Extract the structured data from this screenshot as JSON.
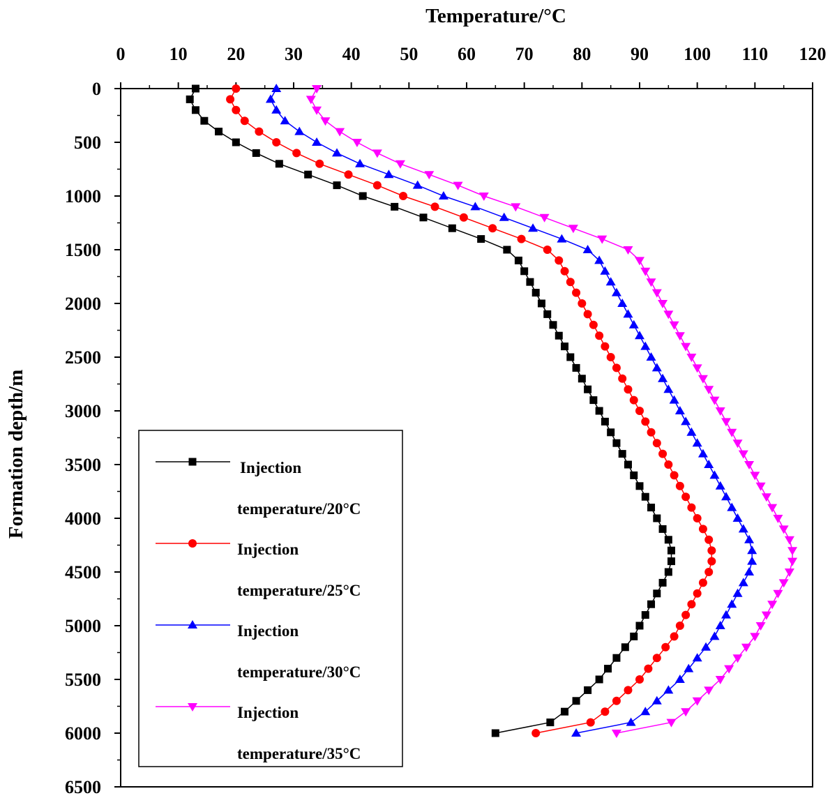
{
  "chart_data": {
    "type": "line",
    "title": "",
    "xlabel": "Temperature/°C",
    "ylabel": "Formation depth/m",
    "xlim": [
      0,
      120
    ],
    "ylim": [
      6500,
      0
    ],
    "x_axis_position": "top",
    "y_inverted": true,
    "x_ticks": [
      "0",
      "10",
      "20",
      "30",
      "40",
      "50",
      "60",
      "70",
      "80",
      "90",
      "100",
      "110",
      "120"
    ],
    "y_ticks": [
      "0",
      "500",
      "1000",
      "1500",
      "2000",
      "2500",
      "3000",
      "3500",
      "4000",
      "4500",
      "5000",
      "5500",
      "6000",
      "6500"
    ],
    "grid": false,
    "legend_position": "bottom-left",
    "depth": [
      0,
      100,
      200,
      300,
      400,
      500,
      600,
      700,
      800,
      900,
      1000,
      1100,
      1200,
      1300,
      1400,
      1500,
      1600,
      1700,
      1800,
      1900,
      2000,
      2100,
      2200,
      2300,
      2400,
      2500,
      2600,
      2700,
      2800,
      2900,
      3000,
      3100,
      3200,
      3300,
      3400,
      3500,
      3600,
      3700,
      3800,
      3900,
      4000,
      4100,
      4200,
      4300,
      4400,
      4500,
      4600,
      4700,
      4800,
      4900,
      5000,
      5100,
      5200,
      5300,
      5400,
      5500,
      5600,
      5700,
      5800,
      5900,
      6000
    ],
    "series": [
      {
        "name_line1": "Injection",
        "name_line2": "temperature/20°C",
        "color": "#000000",
        "marker": "square",
        "values": [
          13,
          12,
          13,
          14.5,
          17,
          20,
          23.5,
          27.5,
          32.5,
          37.5,
          42,
          47.5,
          52.5,
          57.5,
          62.5,
          67,
          69,
          70,
          71,
          72,
          73,
          74,
          75,
          76,
          77,
          78,
          79,
          80,
          81,
          82,
          83,
          84,
          85,
          86,
          87,
          88,
          89,
          90,
          91,
          92,
          93,
          94,
          95,
          95.5,
          95.5,
          95,
          94,
          93,
          92,
          91,
          90,
          89,
          87.5,
          86,
          84.5,
          83,
          81,
          79,
          77,
          74.5,
          65
        ]
      },
      {
        "name_line1": "Injection",
        "name_line2": "temperature/25°C",
        "color": "#ff0000",
        "marker": "circle",
        "values": [
          20,
          19,
          20,
          21.5,
          24,
          27,
          30.5,
          34.5,
          39.5,
          44.5,
          49,
          54.5,
          59.5,
          64.5,
          69.5,
          74,
          76,
          77,
          78,
          79,
          80,
          81,
          82,
          83,
          84,
          85,
          86,
          87,
          88,
          89,
          90,
          91,
          92,
          93,
          94,
          95,
          96,
          97,
          98,
          99,
          100,
          101,
          102,
          102.5,
          102.5,
          102,
          101,
          100,
          99,
          98,
          97,
          96,
          94.5,
          93,
          91.5,
          90,
          88,
          86,
          84,
          81.5,
          72
        ]
      },
      {
        "name_line1": "Injection",
        "name_line2": "temperature/30°C",
        "color": "#0000ff",
        "marker": "triangle-up",
        "values": [
          27,
          26,
          27,
          28.5,
          31,
          34,
          37.5,
          41.5,
          46.5,
          51.5,
          56,
          61.5,
          66.5,
          71.5,
          76.5,
          81,
          83,
          84,
          85,
          86,
          87,
          88,
          89,
          90,
          91,
          92,
          93,
          94,
          95,
          96,
          97,
          98,
          99,
          100,
          101,
          102,
          103,
          104,
          105,
          106,
          107,
          108,
          109,
          109.5,
          109.5,
          109,
          108,
          107,
          106,
          105,
          104,
          103,
          101.5,
          100,
          98.5,
          97,
          95,
          93,
          91,
          88.5,
          79
        ]
      },
      {
        "name_line1": "Injection",
        "name_line2": "temperature/35°C",
        "color": "#ff00ff",
        "marker": "triangle-down",
        "values": [
          34,
          33,
          34,
          35.5,
          38,
          41,
          44.5,
          48.5,
          53.5,
          58.5,
          63,
          68.5,
          73.5,
          78.5,
          83.5,
          88,
          90,
          91,
          92,
          93,
          94,
          95,
          96,
          97,
          98,
          99,
          100,
          101,
          102,
          103,
          104,
          105,
          106,
          107,
          108,
          109,
          110,
          111,
          112,
          113,
          114,
          115,
          116,
          116.5,
          116.5,
          116,
          115,
          114,
          113,
          112,
          111,
          110,
          108.5,
          107,
          105.5,
          104,
          102,
          100,
          98,
          95.5,
          86
        ]
      }
    ]
  }
}
